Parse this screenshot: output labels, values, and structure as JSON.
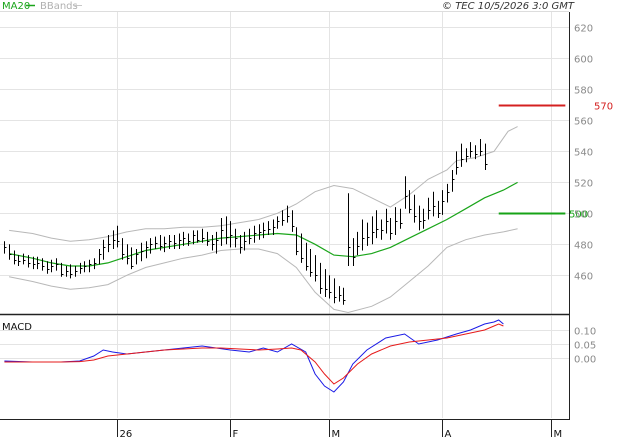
{
  "legend": {
    "ma20_label": "MA20",
    "bbands_label": "BBands"
  },
  "copyright": "© TEC 10/5/2026 3:0 GMT",
  "macd_label": "MACD",
  "colors": {
    "background": "#ffffff",
    "grid": "#e4e4e4",
    "frame": "#222222",
    "price_bars": "#000000",
    "ma20": "#1aa51a",
    "bbands": "#b8b8b8",
    "resistance": "#d42020",
    "support": "#17a317",
    "macd_line": "#1a1ae6",
    "signal_line": "#e61a1a",
    "axis_text": "#8a8a8a"
  },
  "chart_data": [
    {
      "type": "ohlc",
      "name": "price",
      "ylim": [
        435,
        630
      ],
      "y_ticks": [
        460,
        480,
        500,
        520,
        540,
        560,
        580,
        600,
        620
      ],
      "x_ticks": [
        "26",
        "F",
        "M",
        "A",
        "M"
      ],
      "x_tick_positions": [
        24,
        48,
        69,
        93,
        116
      ],
      "n_bars": 120,
      "bars": [
        [
          482,
          474,
          478
        ],
        [
          480,
          470,
          474
        ],
        [
          476,
          467,
          470
        ],
        [
          473,
          466,
          469
        ],
        [
          474,
          467,
          470
        ],
        [
          473,
          465,
          468
        ],
        [
          472,
          464,
          467
        ],
        [
          472,
          464,
          468
        ],
        [
          471,
          463,
          466
        ],
        [
          469,
          461,
          464
        ],
        [
          470,
          462,
          466
        ],
        [
          471,
          463,
          467
        ],
        [
          468,
          459,
          461
        ],
        [
          466,
          459,
          463
        ],
        [
          467,
          458,
          461
        ],
        [
          466,
          459,
          463
        ],
        [
          468,
          461,
          465
        ],
        [
          469,
          462,
          466
        ],
        [
          470,
          462,
          467
        ],
        [
          471,
          464,
          468
        ],
        [
          477,
          467,
          474
        ],
        [
          483,
          470,
          478
        ],
        [
          486,
          475,
          480
        ],
        [
          489,
          477,
          483
        ],
        [
          492,
          478,
          482
        ],
        [
          484,
          470,
          474
        ],
        [
          480,
          467,
          471
        ],
        [
          478,
          464,
          466
        ],
        [
          477,
          467,
          474
        ],
        [
          481,
          469,
          476
        ],
        [
          482,
          471,
          478
        ],
        [
          484,
          474,
          480
        ],
        [
          485,
          477,
          481
        ],
        [
          486,
          476,
          479
        ],
        [
          485,
          475,
          481
        ],
        [
          486,
          477,
          482
        ],
        [
          486,
          477,
          481
        ],
        [
          487,
          477,
          483
        ],
        [
          488,
          479,
          484
        ],
        [
          487,
          479,
          482
        ],
        [
          489,
          480,
          486
        ],
        [
          489,
          481,
          483
        ],
        [
          490,
          481,
          484
        ],
        [
          488,
          479,
          482
        ],
        [
          486,
          476,
          480
        ],
        [
          488,
          474,
          483
        ],
        [
          497,
          479,
          489
        ],
        [
          498,
          480,
          485
        ],
        [
          495,
          478,
          486
        ],
        [
          490,
          478,
          484
        ],
        [
          486,
          474,
          478
        ],
        [
          488,
          476,
          482
        ],
        [
          490,
          480,
          484
        ],
        [
          492,
          481,
          487
        ],
        [
          493,
          483,
          488
        ],
        [
          494,
          484,
          489
        ],
        [
          495,
          486,
          490
        ],
        [
          496,
          486,
          491
        ],
        [
          498,
          490,
          495
        ],
        [
          502,
          492,
          496
        ],
        [
          505,
          494,
          498
        ],
        [
          502,
          488,
          492
        ],
        [
          491,
          473,
          476
        ],
        [
          487,
          468,
          471
        ],
        [
          481,
          463,
          466
        ],
        [
          477,
          459,
          462
        ],
        [
          473,
          456,
          460
        ],
        [
          468,
          448,
          452
        ],
        [
          464,
          446,
          451
        ],
        [
          460,
          445,
          449
        ],
        [
          458,
          442,
          446
        ],
        [
          453,
          443,
          447
        ],
        [
          452,
          441,
          444
        ],
        [
          513,
          466,
          478
        ],
        [
          484,
          466,
          472
        ],
        [
          488,
          473,
          479
        ],
        [
          496,
          476,
          484
        ],
        [
          494,
          479,
          485
        ],
        [
          498,
          480,
          488
        ],
        [
          502,
          484,
          490
        ],
        [
          496,
          483,
          489
        ],
        [
          503,
          487,
          495
        ],
        [
          497,
          483,
          487
        ],
        [
          504,
          486,
          495
        ],
        [
          503,
          490,
          494
        ],
        [
          524,
          503,
          511
        ],
        [
          515,
          500,
          503
        ],
        [
          512,
          494,
          498
        ],
        [
          505,
          489,
          495
        ],
        [
          503,
          490,
          496
        ],
        [
          510,
          496,
          502
        ],
        [
          514,
          498,
          505
        ],
        [
          508,
          497,
          500
        ],
        [
          515,
          499,
          508
        ],
        [
          519,
          507,
          514
        ],
        [
          528,
          514,
          522
        ],
        [
          540,
          525,
          530
        ],
        [
          545,
          530,
          535
        ],
        [
          542,
          533,
          537
        ],
        [
          546,
          536,
          540
        ],
        [
          544,
          535,
          538
        ],
        [
          548,
          537,
          540
        ],
        [
          545,
          528,
          532
        ]
      ],
      "ma20": [
        [
          1,
          474
        ],
        [
          6,
          471
        ],
        [
          10,
          468
        ],
        [
          14,
          466
        ],
        [
          18,
          466
        ],
        [
          22,
          468
        ],
        [
          26,
          472
        ],
        [
          30,
          476
        ],
        [
          34,
          478
        ],
        [
          38,
          480
        ],
        [
          42,
          482
        ],
        [
          46,
          484
        ],
        [
          50,
          485
        ],
        [
          54,
          486
        ],
        [
          58,
          487
        ],
        [
          62,
          486
        ],
        [
          66,
          480
        ],
        [
          70,
          473
        ],
        [
          74,
          472
        ],
        [
          78,
          474
        ],
        [
          82,
          478
        ],
        [
          86,
          484
        ],
        [
          90,
          490
        ],
        [
          94,
          496
        ],
        [
          98,
          503
        ],
        [
          102,
          510
        ],
        [
          106,
          515
        ],
        [
          109,
          520
        ]
      ],
      "bb_upper": [
        [
          1,
          489
        ],
        [
          6,
          487
        ],
        [
          10,
          484
        ],
        [
          14,
          482
        ],
        [
          18,
          483
        ],
        [
          22,
          485
        ],
        [
          26,
          488
        ],
        [
          30,
          490
        ],
        [
          34,
          490
        ],
        [
          38,
          491
        ],
        [
          42,
          491
        ],
        [
          46,
          492
        ],
        [
          50,
          494
        ],
        [
          54,
          496
        ],
        [
          58,
          500
        ],
        [
          62,
          506
        ],
        [
          66,
          514
        ],
        [
          70,
          518
        ],
        [
          74,
          516
        ],
        [
          78,
          510
        ],
        [
          82,
          504
        ],
        [
          86,
          512
        ],
        [
          90,
          522
        ],
        [
          94,
          528
        ],
        [
          96,
          534
        ],
        [
          100,
          536
        ],
        [
          104,
          540
        ],
        [
          107,
          553
        ],
        [
          109,
          556
        ]
      ],
      "bb_lower": [
        [
          1,
          459
        ],
        [
          6,
          456
        ],
        [
          10,
          453
        ],
        [
          14,
          451
        ],
        [
          18,
          452
        ],
        [
          22,
          454
        ],
        [
          26,
          460
        ],
        [
          30,
          465
        ],
        [
          34,
          468
        ],
        [
          38,
          471
        ],
        [
          42,
          473
        ],
        [
          46,
          476
        ],
        [
          50,
          477
        ],
        [
          54,
          477
        ],
        [
          58,
          474
        ],
        [
          62,
          465
        ],
        [
          66,
          449
        ],
        [
          70,
          438
        ],
        [
          73,
          436
        ],
        [
          78,
          440
        ],
        [
          82,
          446
        ],
        [
          86,
          456
        ],
        [
          90,
          466
        ],
        [
          94,
          478
        ],
        [
          98,
          483
        ],
        [
          102,
          486
        ],
        [
          106,
          488
        ],
        [
          109,
          490
        ]
      ],
      "resistance": {
        "value": 570,
        "label": "570",
        "x_from": 105,
        "x_to": 120
      },
      "support": {
        "value": 500,
        "label": "500",
        "x_from": 105,
        "x_to": 120
      }
    },
    {
      "type": "line",
      "name": "MACD",
      "ylim": [
        -30,
        21
      ],
      "y_ticks": [
        0.1,
        0.05,
        0.0
      ],
      "y_tick_labels": [
        "0.10",
        "0.05",
        "0.00"
      ],
      "series": [
        {
          "role": "macd",
          "points": [
            [
              0,
              -1.5
            ],
            [
              6,
              -2
            ],
            [
              12,
              -2
            ],
            [
              16,
              -1.5
            ],
            [
              19,
              1
            ],
            [
              21,
              4
            ],
            [
              23,
              3
            ],
            [
              26,
              2
            ],
            [
              30,
              3
            ],
            [
              34,
              4
            ],
            [
              38,
              5
            ],
            [
              42,
              6
            ],
            [
              45,
              5
            ],
            [
              48,
              4
            ],
            [
              52,
              3
            ],
            [
              55,
              5
            ],
            [
              58,
              3
            ],
            [
              61,
              7
            ],
            [
              64,
              3
            ],
            [
              66,
              -8
            ],
            [
              68,
              -14
            ],
            [
              70,
              -17
            ],
            [
              72,
              -12
            ],
            [
              74,
              -3
            ],
            [
              77,
              4
            ],
            [
              81,
              10
            ],
            [
              85,
              12
            ],
            [
              88,
              7
            ],
            [
              92,
              9
            ],
            [
              96,
              12
            ],
            [
              99,
              14
            ],
            [
              102,
              17
            ],
            [
              104,
              18
            ],
            [
              105,
              19
            ],
            [
              106,
              17
            ]
          ]
        },
        {
          "role": "signal",
          "points": [
            [
              0,
              -2
            ],
            [
              6,
              -2
            ],
            [
              12,
              -2
            ],
            [
              16,
              -1.8
            ],
            [
              19,
              -1
            ],
            [
              22,
              1
            ],
            [
              26,
              2
            ],
            [
              30,
              3
            ],
            [
              34,
              4
            ],
            [
              38,
              4.5
            ],
            [
              42,
              5
            ],
            [
              46,
              5
            ],
            [
              50,
              4.5
            ],
            [
              54,
              4
            ],
            [
              58,
              4.5
            ],
            [
              61,
              5
            ],
            [
              63,
              4
            ],
            [
              66,
              -2
            ],
            [
              68,
              -8
            ],
            [
              70,
              -13
            ],
            [
              72,
              -10
            ],
            [
              75,
              -3
            ],
            [
              78,
              2
            ],
            [
              82,
              6
            ],
            [
              86,
              8
            ],
            [
              90,
              9
            ],
            [
              94,
              10
            ],
            [
              98,
              12
            ],
            [
              102,
              14
            ],
            [
              104,
              16
            ],
            [
              105,
              17
            ],
            [
              106,
              16
            ]
          ]
        }
      ]
    }
  ]
}
